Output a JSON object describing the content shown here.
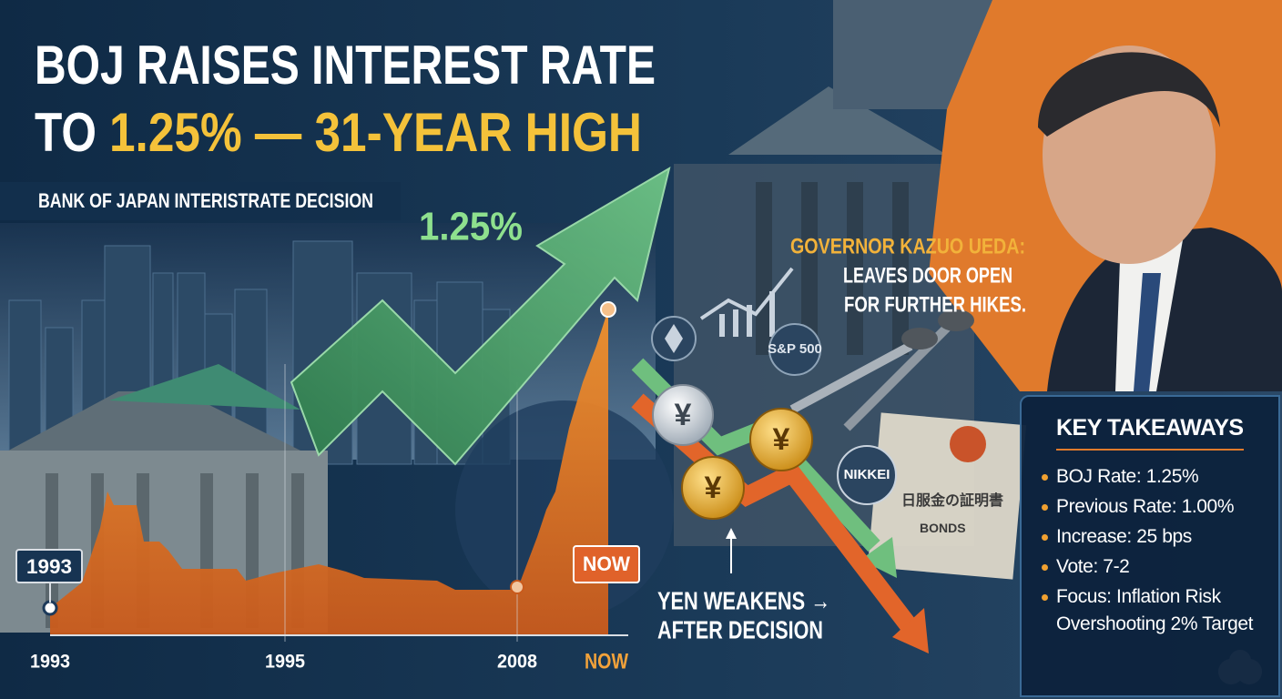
{
  "header": {
    "title_line1": "BOJ RAISES INTEREST RATE",
    "title_line2_prefix": "TO",
    "title_line2_highlight": "1.25% — 31-YEAR HIGH",
    "subtitle": "BANK OF JAPAN INTERISTRATE DECISION"
  },
  "arrow_label": "1.25%",
  "timeline": {
    "axis_labels": [
      "1993",
      "1995",
      "2008",
      "NOW"
    ],
    "callouts": [
      "1993",
      "NOW"
    ]
  },
  "market_icons": {
    "index": "S&P 500",
    "nikkei": "NIKKEI",
    "yen": "¥",
    "bond_title": "日服金の証明書",
    "bond_label": "BONDS"
  },
  "governor": {
    "name": "GOVERNOR KAZUO UEDA:",
    "quote_line1": "LEAVES DOOR OPEN",
    "quote_line2": "FOR FURTHER HIKES."
  },
  "yen_note": {
    "line1": "YEN WEAKENS →",
    "line2": "AFTER DECISION"
  },
  "takeaways": {
    "title": "KEY TAKEAWAYS",
    "items": [
      "BOJ Rate: 1.25%",
      "Previous Rate: 1.00%",
      "Increase: 25 bps",
      "Vote: 7-2",
      "Focus: Inflation Risk Overshooting 2% Target"
    ]
  }
}
